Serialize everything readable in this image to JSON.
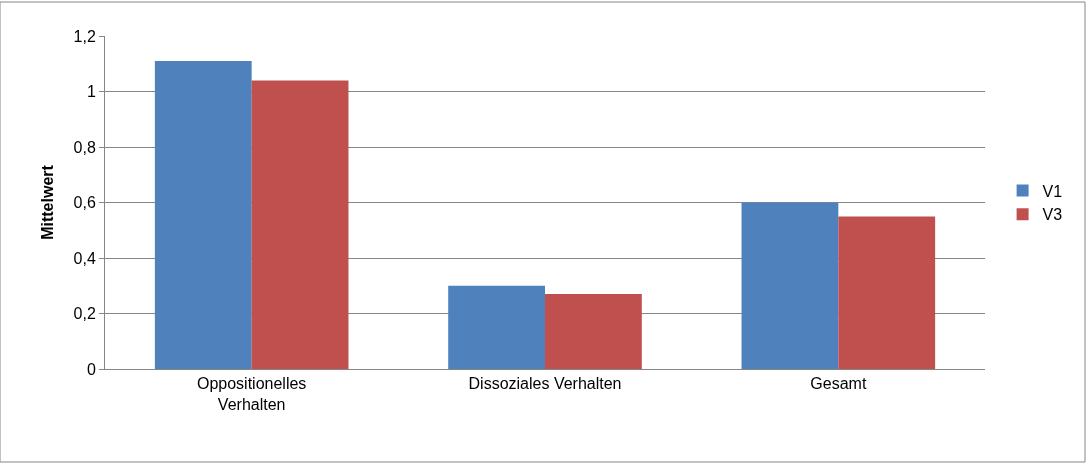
{
  "chart_data": {
    "type": "bar",
    "ylabel": "Mittelwert",
    "categories": [
      "Oppositionelles Verhalten",
      "Dissoziales Verhalten",
      "Gesamt"
    ],
    "series": [
      {
        "name": "V1",
        "color": "#4f81bd",
        "values": [
          1.11,
          0.3,
          0.6
        ]
      },
      {
        "name": "V3",
        "color": "#c0504d",
        "values": [
          1.04,
          0.27,
          0.55
        ]
      }
    ],
    "ylim": [
      0,
      1.2
    ],
    "yticks": [
      {
        "value": 0,
        "label": "0"
      },
      {
        "value": 0.2,
        "label": "0,2"
      },
      {
        "value": 0.4,
        "label": "0,4"
      },
      {
        "value": 0.6,
        "label": "0,6"
      },
      {
        "value": 0.8,
        "label": "0,8"
      },
      {
        "value": 1,
        "label": "1"
      },
      {
        "value": 1.2,
        "label": "1,2"
      }
    ],
    "grid": "y",
    "legend": "right"
  }
}
